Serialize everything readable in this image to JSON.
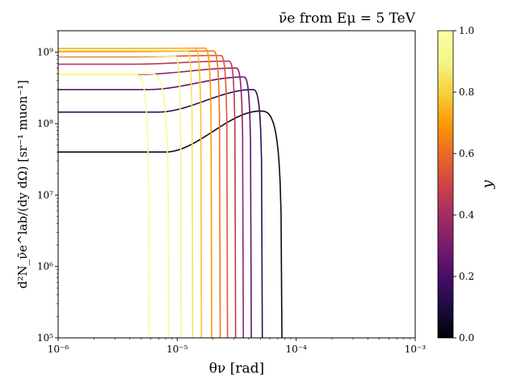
{
  "chart_data": {
    "type": "line",
    "title": "ν̄e from Eμ = 5 TeV",
    "xlabel": "θν [rad]",
    "ylabel": "d²N_ν̄e^lab/(dy dΩ) [sr⁻¹ muon⁻¹]",
    "xscale": "log",
    "yscale": "log",
    "xlim": [
      1e-06,
      0.001
    ],
    "ylim": [
      100000.0,
      2000000000.0
    ],
    "grid": false,
    "x_ticks": [
      {
        "value": 1e-06,
        "label": "10⁻⁶"
      },
      {
        "value": 1e-05,
        "label": "10⁻⁵"
      },
      {
        "value": 0.0001,
        "label": "10⁻⁴"
      },
      {
        "value": 0.001,
        "label": "10⁻³"
      }
    ],
    "y_ticks": [
      {
        "value": 100000.0,
        "label": "10⁵"
      },
      {
        "value": 1000000.0,
        "label": "10⁶"
      },
      {
        "value": 10000000.0,
        "label": "10⁷"
      },
      {
        "value": 100000000.0,
        "label": "10⁸"
      },
      {
        "value": 1000000000.0,
        "label": "10⁹"
      }
    ],
    "colorbar": {
      "label": "y",
      "range": [
        0.0,
        1.0
      ],
      "ticks": [
        {
          "value": 0.0,
          "label": "0.0"
        },
        {
          "value": 0.2,
          "label": "0.2"
        },
        {
          "value": 0.4,
          "label": "0.4"
        },
        {
          "value": 0.6,
          "label": "0.6"
        },
        {
          "value": 0.8,
          "label": "0.8"
        },
        {
          "value": 1.0,
          "label": "1.0"
        }
      ],
      "colormap": "inferno"
    },
    "series": [
      {
        "y": 0.05,
        "plateau": 40000000.0,
        "peak": 150000000.0,
        "theta_peak": 5e-05,
        "theta_max": 7.6e-05
      },
      {
        "y": 0.15,
        "plateau": 145000000.0,
        "peak": 300000000.0,
        "theta_peak": 4.3e-05,
        "theta_max": 5.2e-05
      },
      {
        "y": 0.25,
        "plateau": 300000000.0,
        "peak": 450000000.0,
        "theta_peak": 3.6e-05,
        "theta_max": 4.2e-05
      },
      {
        "y": 0.35,
        "plateau": 490000000.0,
        "peak": 600000000.0,
        "theta_peak": 3.1e-05,
        "theta_max": 3.6e-05
      },
      {
        "y": 0.45,
        "plateau": 680000000.0,
        "peak": 750000000.0,
        "theta_peak": 2.7e-05,
        "theta_max": 3.1e-05
      },
      {
        "y": 0.55,
        "plateau": 860000000.0,
        "peak": 900000000.0,
        "theta_peak": 2.3e-05,
        "theta_max": 2.65e-05
      },
      {
        "y": 0.62,
        "plateau": 1020000000.0,
        "peak": 1040000000.0,
        "theta_peak": 2e-05,
        "theta_max": 2.3e-05
      },
      {
        "y": 0.7,
        "plateau": 1130000000.0,
        "peak": 1140000000.0,
        "theta_peak": 1.7e-05,
        "theta_max": 1.95e-05
      },
      {
        "y": 0.77,
        "plateau": 1130000000.0,
        "peak": 1130000000.0,
        "theta_peak": 1.4e-05,
        "theta_max": 1.6e-05
      },
      {
        "y": 0.85,
        "plateau": 1050000000.0,
        "peak": 1050000000.0,
        "theta_peak": 1.2e-05,
        "theta_max": 1.35e-05
      },
      {
        "y": 0.9,
        "plateau": 880000000.0,
        "peak": 880000000.0,
        "theta_peak": 9.5e-06,
        "theta_max": 1.08e-05
      },
      {
        "y": 0.95,
        "plateau": 500000000.0,
        "peak": 500000000.0,
        "theta_peak": 6e-06,
        "theta_max": 8.5e-06
      },
      {
        "y": 0.975,
        "plateau": 480000000.0,
        "peak": 480000000.0,
        "theta_peak": 4.5e-06,
        "theta_max": 5.8e-06
      }
    ]
  }
}
